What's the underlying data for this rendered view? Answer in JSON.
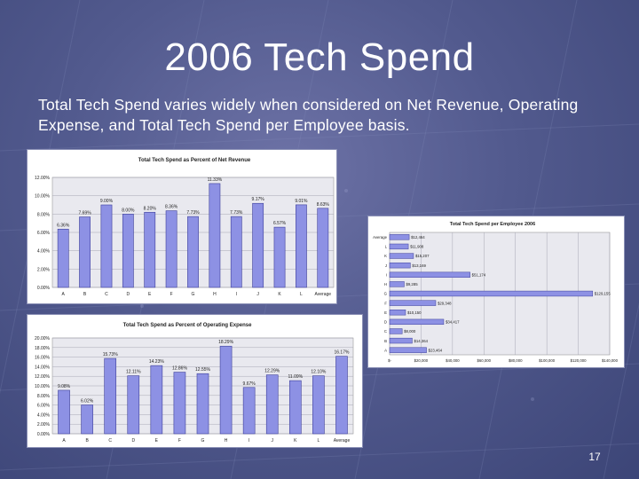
{
  "slide": {
    "title": "2006 Tech Spend",
    "subtitle": "Total Tech Spend varies widely when considered on Net Revenue, Operating Expense, and Total Tech Spend per Employee basis.",
    "page_number": "17"
  },
  "chart_data": [
    {
      "type": "bar",
      "title": "Total Tech Spend as Percent of Net Revenue",
      "categories": [
        "A",
        "B",
        "C",
        "D",
        "E",
        "F",
        "G",
        "H",
        "I",
        "J",
        "K",
        "L",
        "Average"
      ],
      "values": [
        6.36,
        7.69,
        9.0,
        8.0,
        8.2,
        8.36,
        7.73,
        11.33,
        7.73,
        9.17,
        6.57,
        9.01,
        8.63
      ],
      "data_labels": [
        "6.36%",
        "7.69%",
        "9.00%",
        "8.00%",
        "8.20%",
        "8.36%",
        "7.73%",
        "11.33%",
        "7.73%",
        "9.17%",
        "6.57%",
        "9.01%",
        "8.63%"
      ],
      "ylim": [
        0,
        12
      ],
      "yticks": [
        "0.00%",
        "2.00%",
        "4.00%",
        "6.00%",
        "8.00%",
        "10.00%",
        "12.00%"
      ],
      "grid": true,
      "colors": {
        "bar": "#8d91e4",
        "bar_edge": "#3d3f9a",
        "plot_bg": "#e9e9ef"
      }
    },
    {
      "type": "bar",
      "title": "Total Tech Spend as Percent of Operating Expense",
      "categories": [
        "A",
        "B",
        "C",
        "D",
        "E",
        "F",
        "G",
        "H",
        "I",
        "J",
        "K",
        "L",
        "Average"
      ],
      "values": [
        9.08,
        6.02,
        15.73,
        12.11,
        14.23,
        12.86,
        12.55,
        18.29,
        9.67,
        12.29,
        11.09,
        12.1,
        16.17
      ],
      "data_labels": [
        "9.08%",
        "6.02%",
        "15.73%",
        "12.11%",
        "14.23%",
        "12.86%",
        "12.55%",
        "18.29%",
        "9.67%",
        "12.29%",
        "11.09%",
        "12.10%",
        "16.17%"
      ],
      "ylim": [
        0,
        20
      ],
      "yticks": [
        "0.00%",
        "2.00%",
        "4.00%",
        "6.00%",
        "8.00%",
        "10.00%",
        "12.00%",
        "14.00%",
        "16.00%",
        "18.00%",
        "20.00%"
      ],
      "grid": true,
      "colors": {
        "bar": "#8d91e4",
        "bar_edge": "#3d3f9a",
        "plot_bg": "#e9e9ef"
      }
    },
    {
      "type": "bar",
      "orientation": "horizontal",
      "title": "Total Tech Spend per Employee 2006",
      "categories": [
        "Average",
        "L",
        "K",
        "J",
        "I",
        "H",
        "G",
        "F",
        "E",
        "D",
        "C",
        "B",
        "A"
      ],
      "values": [
        12464,
        11908,
        15207,
        13169,
        51174,
        9285,
        129155,
        29348,
        10150,
        34417,
        8000,
        14364,
        23464
      ],
      "data_labels": [
        "$12,464",
        "$11,908",
        "$15,207",
        "$13,169",
        "$51,174",
        "$9,285",
        "$129,155",
        "$29,348",
        "$10,150",
        "$34,417",
        "$8,000",
        "$14,364",
        "$23,464"
      ],
      "xlim": [
        0,
        140000
      ],
      "xticks": [
        "$-",
        "$20,000",
        "$40,000",
        "$60,000",
        "$80,000",
        "$100,000",
        "$120,000",
        "$140,000"
      ],
      "grid": true,
      "colors": {
        "bar": "#8d91e4",
        "bar_edge": "#3d3f9a",
        "plot_bg": "#e9e9ef"
      }
    }
  ]
}
